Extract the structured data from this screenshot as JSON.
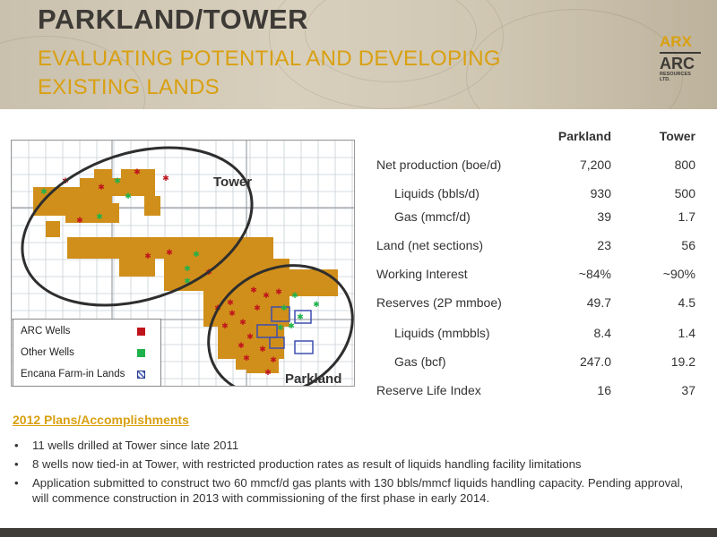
{
  "header": {
    "title": "PARKLAND/TOWER",
    "subtitle": "EVALUATING POTENTIAL AND DEVELOPING EXISTING LANDS"
  },
  "logo": {
    "top": "ARX",
    "main": "ARC",
    "line1": "RESOURCES",
    "line2": "LTD."
  },
  "map": {
    "label_tower": "Tower",
    "label_parkland": "Parkland",
    "legend": [
      {
        "label": "ARC Wells",
        "color": "#c0141c"
      },
      {
        "label": "Other Wells",
        "color": "#1fb24a"
      },
      {
        "label": "Encana Farm-in Lands",
        "color": "#5a6fc0"
      }
    ],
    "land_color": "#d08f1a"
  },
  "stats": {
    "col1": "Parkland",
    "col2": "Tower",
    "rows": [
      {
        "label": "Net production (boe/d)",
        "parkland": "7,200",
        "tower": "800",
        "indent": false
      },
      {
        "label": "Liquids (bbls/d)",
        "parkland": "930",
        "tower": "500",
        "indent": true
      },
      {
        "label": "Gas (mmcf/d)",
        "parkland": "39",
        "tower": "1.7",
        "indent": true
      },
      {
        "label": "Land (net sections)",
        "parkland": "23",
        "tower": "56",
        "indent": false
      },
      {
        "label": "Working Interest",
        "parkland": "~84%",
        "tower": "~90%",
        "indent": false
      },
      {
        "label": "Reserves (2P mmboe)",
        "parkland": "49.7",
        "tower": "4.5",
        "indent": false
      },
      {
        "label": "Liquids (mmbbls)",
        "parkland": "8.4",
        "tower": "1.4",
        "indent": true
      },
      {
        "label": "Gas (bcf)",
        "parkland": "247.0",
        "tower": "19.2",
        "indent": true
      },
      {
        "label": "Reserve Life Index",
        "parkland": "16",
        "tower": "37",
        "indent": false
      }
    ]
  },
  "plans": {
    "heading": "2012 Plans/Accomplishments",
    "bullets": [
      "11 wells drilled at Tower since late 2011",
      "8 wells now tied-in at Tower, with restricted production rates as result of liquids handling facility limitations",
      "Application submitted to construct two 60 mmcf/d gas plants with 130 bbls/mmcf liquids handling capacity. Pending approval, will commence construction in 2013 with commissioning of the first phase in early 2014."
    ]
  }
}
